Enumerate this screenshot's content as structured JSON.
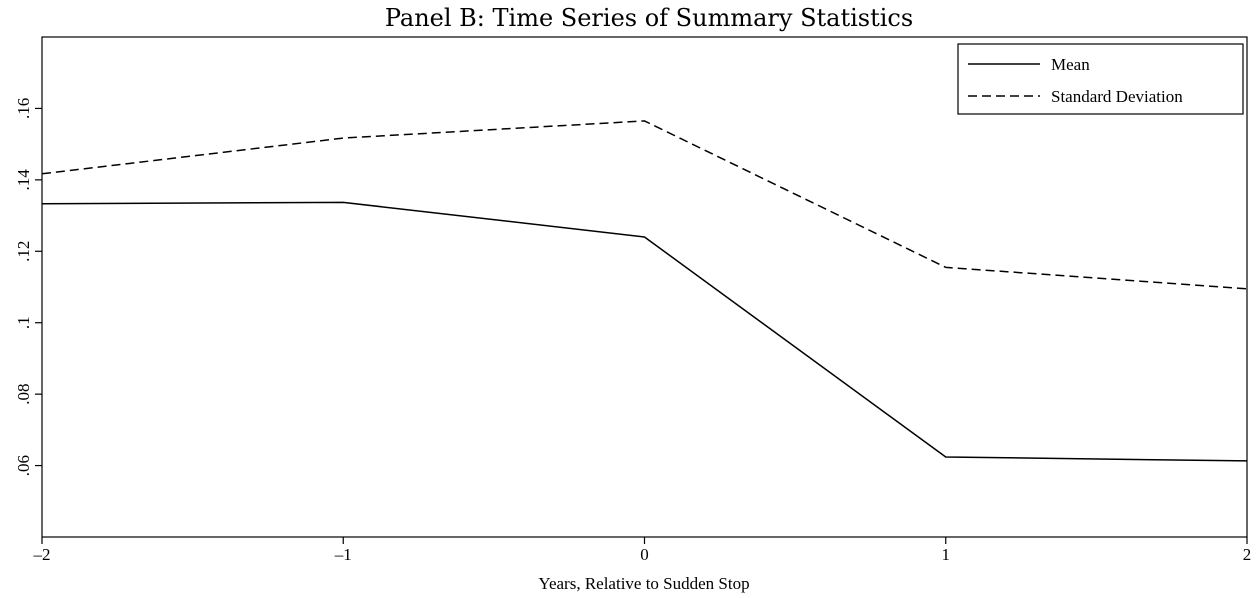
{
  "chart_data": {
    "type": "line",
    "title": "Panel B: Time Series of Summary Statistics",
    "xlabel": "Years, Relative to Sudden Stop",
    "ylabel": "",
    "x": [
      -2,
      -1,
      0,
      1,
      2
    ],
    "x_tick_labels": [
      "–2",
      "–1",
      "0",
      "1",
      "2"
    ],
    "xlim": [
      -2,
      2
    ],
    "y_ticks": [
      0.06,
      0.08,
      0.1,
      0.12,
      0.14,
      0.16
    ],
    "y_tick_labels": [
      ".06",
      ".08",
      ".1",
      ".12",
      ".14",
      ".16"
    ],
    "ylim": [
      0.04,
      0.18
    ],
    "grid": false,
    "legend_position": "top-right",
    "series": [
      {
        "name": "Mean",
        "style": "solid",
        "color": "#000000",
        "values": [
          0.1333,
          0.1337,
          0.124,
          0.0624,
          0.0613
        ]
      },
      {
        "name": "Standard Deviation",
        "style": "dashed",
        "color": "#000000",
        "values": [
          0.1417,
          0.1517,
          0.1565,
          0.1155,
          0.1095
        ]
      }
    ]
  }
}
